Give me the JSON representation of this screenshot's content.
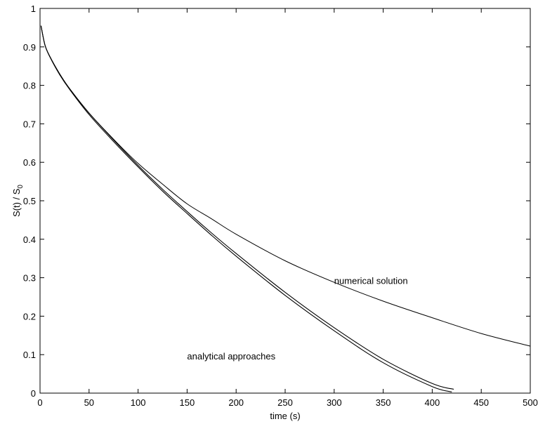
{
  "chart_data": {
    "type": "line",
    "title": "",
    "xlabel": "time (s)",
    "ylabel_main": "S(t) / S",
    "ylabel_sub": "0",
    "xlim": [
      0,
      500
    ],
    "ylim": [
      0,
      1
    ],
    "x_ticks": [
      "0",
      "50",
      "100",
      "150",
      "200",
      "250",
      "300",
      "350",
      "400",
      "450",
      "500"
    ],
    "y_ticks": [
      "0",
      "0.1",
      "0.2",
      "0.3",
      "0.4",
      "0.5",
      "0.6",
      "0.7",
      "0.8",
      "0.9",
      "1"
    ],
    "grid": false,
    "line_color": "#000000",
    "annotations": [
      {
        "text": "numerical solution",
        "x": 300,
        "y": 0.293
      },
      {
        "text": "analytical approaches",
        "x": 150,
        "y": 0.097
      }
    ],
    "series": [
      {
        "x": [
          1,
          5,
          10,
          20,
          30,
          50,
          75,
          100,
          125,
          150,
          175,
          200,
          250,
          300,
          350,
          400,
          450,
          500
        ],
        "y": [
          0.955,
          0.905,
          0.875,
          0.83,
          0.792,
          0.728,
          0.66,
          0.597,
          0.543,
          0.492,
          0.453,
          0.413,
          0.344,
          0.288,
          0.239,
          0.196,
          0.155,
          0.122
        ],
        "width": 1.0
      },
      {
        "x": [
          1,
          5,
          10,
          20,
          30,
          50,
          75,
          100,
          125,
          150,
          175,
          200,
          250,
          300,
          350,
          400,
          422
        ],
        "y": [
          0.955,
          0.905,
          0.875,
          0.83,
          0.792,
          0.728,
          0.658,
          0.592,
          0.53,
          0.472,
          0.416,
          0.363,
          0.262,
          0.17,
          0.088,
          0.025,
          0.01
        ],
        "width": 1.1
      },
      {
        "x": [
          1,
          5,
          10,
          20,
          30,
          50,
          75,
          100,
          125,
          150,
          175,
          200,
          250,
          300,
          350,
          400,
          420
        ],
        "y": [
          0.955,
          0.905,
          0.874,
          0.828,
          0.79,
          0.724,
          0.654,
          0.588,
          0.525,
          0.467,
          0.41,
          0.356,
          0.254,
          0.162,
          0.079,
          0.017,
          0.003
        ],
        "width": 1.1
      }
    ]
  }
}
